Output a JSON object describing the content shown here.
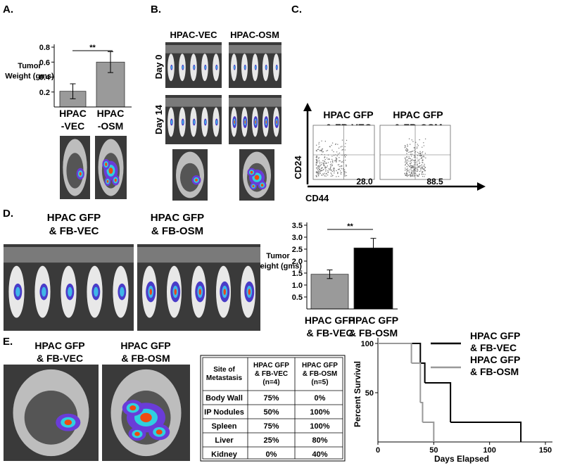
{
  "panel_labels": [
    "A.",
    "B.",
    "C.",
    "D.",
    "E."
  ],
  "chart_data": [
    {
      "type": "bar",
      "ylabel": "Tumor\nWeight (gms)",
      "categories": [
        "HPAC\n-VEC",
        "HPAC\n-OSM"
      ],
      "values": [
        0.21,
        0.6
      ],
      "errors": [
        0.1,
        0.14
      ],
      "colors": [
        "#9a9a9a",
        "#9a9a9a"
      ],
      "ylim": [
        0,
        0.8
      ],
      "yticks": [
        0.2,
        0.4,
        0.6,
        0.8
      ],
      "significance": "**"
    },
    {
      "type": "bar",
      "ylabel": "Tumor\nweight (gms)",
      "categories": [
        "HPAC GFP\n& FB-VEC",
        "HPAC GFP\n& FB-OSM"
      ],
      "values": [
        1.45,
        2.55
      ],
      "errors": [
        0.18,
        0.4
      ],
      "colors": [
        "#9a9a9a",
        "#000000"
      ],
      "ylim": [
        0,
        3.5
      ],
      "yticks": [
        0.5,
        {
          "value": 1,
          "label": "1.0"
        },
        1.5,
        {
          "value": 2,
          "label": "2.0"
        },
        2.5,
        {
          "value": 3,
          "label": "3.0"
        },
        3.5
      ],
      "significance": "**"
    },
    {
      "type": "line",
      "step": true,
      "xlabel": "Days Elapsed",
      "ylabel": "Percent Survival",
      "xlim": [
        0,
        150
      ],
      "ylim": [
        0,
        100
      ],
      "xticks": [
        0,
        50,
        100,
        150
      ],
      "yticks": [
        50,
        100
      ],
      "series": [
        {
          "name": "HPAC GFP\n& FB-VEC",
          "color": "#000000",
          "x": [
            0,
            38,
            42,
            65,
            128
          ],
          "values": [
            100,
            80,
            60,
            20,
            0
          ]
        },
        {
          "name": "HPAC GFP\n& FB-OSM",
          "color": "#999999",
          "x": [
            0,
            30,
            38,
            40,
            50
          ],
          "values": [
            100,
            80,
            40,
            20,
            0
          ]
        }
      ]
    }
  ],
  "panel_b": {
    "columns": [
      "HPAC-VEC",
      "HPAC-OSM"
    ],
    "rows": [
      "Day 0",
      "Day 14"
    ]
  },
  "panel_c": {
    "groups": [
      "HPAC GFP\n& FB-VEC",
      "HPAC GFP\n& FB-OSM"
    ],
    "percentages": [
      "28.0",
      "88.5"
    ],
    "y_axis": "CD24",
    "x_axis": "CD44"
  },
  "panel_d": {
    "groups": [
      "HPAC GFP\n& FB-VEC",
      "HPAC GFP\n& FB-OSM"
    ]
  },
  "panel_e": {
    "groups": [
      "HPAC GFP\n& FB-VEC",
      "HPAC GFP\n& FB-OSM"
    ],
    "table": {
      "header": [
        "Site of\nMetastasis",
        "HPAC GFP\n& FB-VEC\n(n=4)",
        "HPAC GFP\n& FB-OSM\n(n=5)"
      ],
      "rows": [
        [
          "Body Wall",
          "75%",
          "0%"
        ],
        [
          "IP Nodules",
          "50%",
          "100%"
        ],
        [
          "Spleen",
          "75%",
          "100%"
        ],
        [
          "Liver",
          "25%",
          "80%"
        ],
        [
          "Kidney",
          "0%",
          "40%"
        ]
      ]
    }
  }
}
